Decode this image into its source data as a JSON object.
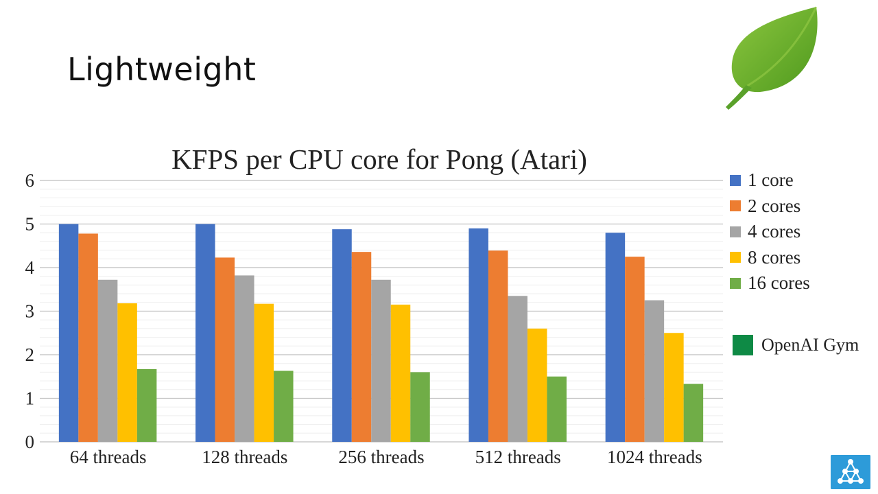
{
  "slide": {
    "title": "Lightweight"
  },
  "colors": {
    "series": [
      "#4472C4",
      "#ED7D31",
      "#A5A5A5",
      "#FFC000",
      "#70AD47"
    ],
    "gym": "#0E8A45",
    "grid": "#d9d9d9",
    "axis": "#bfbfbf"
  },
  "icons": {
    "top_right": "leaf-icon",
    "bottom_right": "network-logo-icon"
  },
  "extra_legend": {
    "label": "OpenAI Gym"
  },
  "chart_data": {
    "type": "bar",
    "title": "KFPS per CPU core for Pong (Atari)",
    "xlabel": "",
    "ylabel": "",
    "ylim": [
      0,
      6
    ],
    "yticks": [
      "0",
      "1",
      "2",
      "3",
      "4",
      "5",
      "6"
    ],
    "grid": true,
    "legend_position": "right",
    "categories": [
      "64 threads",
      "128 threads",
      "256 threads",
      "512 threads",
      "1024 threads"
    ],
    "series": [
      {
        "name": "1 core",
        "values": [
          5.0,
          5.0,
          4.88,
          4.9,
          4.8
        ]
      },
      {
        "name": "2 cores",
        "values": [
          4.78,
          4.23,
          4.36,
          4.39,
          4.25
        ]
      },
      {
        "name": "4 cores",
        "values": [
          3.72,
          3.82,
          3.72,
          3.35,
          3.25
        ]
      },
      {
        "name": "8 cores",
        "values": [
          3.18,
          3.17,
          3.15,
          2.6,
          2.5
        ]
      },
      {
        "name": "16 cores",
        "values": [
          1.67,
          1.63,
          1.6,
          1.5,
          1.33
        ]
      }
    ]
  }
}
